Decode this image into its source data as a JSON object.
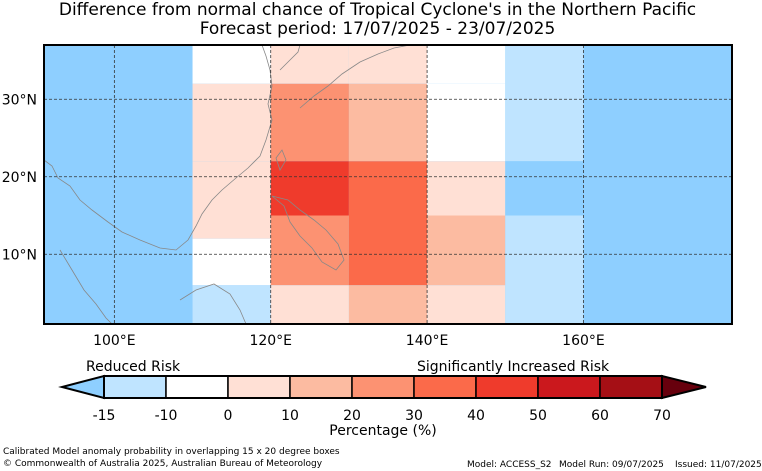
{
  "title": {
    "line1": "Difference from normal chance of Tropical Cyclone's in the Northern Pacific",
    "line2": "Forecast period: 17/07/2025 - 23/07/2025"
  },
  "map": {
    "lon_range": [
      91,
      179
    ],
    "lat_range": [
      1,
      37
    ],
    "lon_ticks": [
      {
        "value": 100,
        "label": "100°E"
      },
      {
        "value": 120,
        "label": "120°E"
      },
      {
        "value": 140,
        "label": "140°E"
      },
      {
        "value": 160,
        "label": "160°E"
      }
    ],
    "lat_ticks": [
      {
        "value": 30,
        "label": "30°N"
      },
      {
        "value": 20,
        "label": "20°N"
      },
      {
        "value": 10,
        "label": "10°N"
      }
    ],
    "background_color": "#8ecfff",
    "grid_cells": [
      {
        "lon": [
          110,
          120
        ],
        "lat": [
          32,
          37
        ],
        "color": "#ffffff"
      },
      {
        "lon": [
          110,
          120
        ],
        "lat": [
          22,
          32
        ],
        "color": "#ffe0d5"
      },
      {
        "lon": [
          110,
          120
        ],
        "lat": [
          12,
          22
        ],
        "color": "#ffe0d5"
      },
      {
        "lon": [
          110,
          120
        ],
        "lat": [
          6,
          12
        ],
        "color": "#ffffff"
      },
      {
        "lon": [
          110,
          120
        ],
        "lat": [
          1,
          6
        ],
        "color": "#bfe4ff"
      },
      {
        "lon": [
          120,
          130
        ],
        "lat": [
          32,
          37
        ],
        "color": "#ffe0d5"
      },
      {
        "lon": [
          120,
          130
        ],
        "lat": [
          27,
          32
        ],
        "color": "#fc9272"
      },
      {
        "lon": [
          120,
          130
        ],
        "lat": [
          22,
          27
        ],
        "color": "#fc9272"
      },
      {
        "lon": [
          120,
          130
        ],
        "lat": [
          15,
          22
        ],
        "color": "#ef3b2c"
      },
      {
        "lon": [
          120,
          130
        ],
        "lat": [
          6,
          15
        ],
        "color": "#fc9272"
      },
      {
        "lon": [
          120,
          130
        ],
        "lat": [
          1,
          6
        ],
        "color": "#ffe0d5"
      },
      {
        "lon": [
          130,
          140
        ],
        "lat": [
          32,
          37
        ],
        "color": "#ffe0d5"
      },
      {
        "lon": [
          130,
          140
        ],
        "lat": [
          22,
          32
        ],
        "color": "#fcbba1"
      },
      {
        "lon": [
          130,
          140
        ],
        "lat": [
          6,
          22
        ],
        "color": "#fb6a4a"
      },
      {
        "lon": [
          130,
          140
        ],
        "lat": [
          1,
          6
        ],
        "color": "#fcbba1"
      },
      {
        "lon": [
          140,
          150
        ],
        "lat": [
          32,
          37
        ],
        "color": "#ffffff"
      },
      {
        "lon": [
          140,
          150
        ],
        "lat": [
          22,
          32
        ],
        "color": "#ffffff"
      },
      {
        "lon": [
          140,
          150
        ],
        "lat": [
          15,
          22
        ],
        "color": "#ffe0d5"
      },
      {
        "lon": [
          140,
          150
        ],
        "lat": [
          6,
          15
        ],
        "color": "#fcbba1"
      },
      {
        "lon": [
          140,
          150
        ],
        "lat": [
          1,
          6
        ],
        "color": "#ffe0d5"
      },
      {
        "lon": [
          150,
          160
        ],
        "lat": [
          22,
          37
        ],
        "color": "#bfe4ff"
      },
      {
        "lon": [
          150,
          160
        ],
        "lat": [
          15,
          22
        ],
        "color": "#8ecfff"
      },
      {
        "lon": [
          150,
          160
        ],
        "lat": [
          1,
          15
        ],
        "color": "#bfe4ff"
      }
    ]
  },
  "colorbar": {
    "left_label": "Reduced Risk",
    "right_label": "Significantly Increased Risk",
    "axis_title": "Percentage (%)",
    "ticks": [
      "-15",
      "-10",
      "0",
      "10",
      "20",
      "30",
      "40",
      "50",
      "60",
      "70"
    ],
    "under_color": "#8ecfff",
    "over_color": "#67000d",
    "bins": [
      "#bfe4ff",
      "#ffffff",
      "#ffe0d5",
      "#fcbba1",
      "#fc9272",
      "#fb6a4a",
      "#ef3b2c",
      "#cb181d",
      "#a50f15"
    ]
  },
  "footer": {
    "line1": "Calibrated Model anomaly probability in overlapping 15 x 20 degree boxes",
    "line2": "© Commonwealth of Australia 2025, Australian Bureau of Meteorology",
    "model": "Model: ACCESS_S2",
    "model_run": "Model Run: 09/07/2025",
    "issued": "Issued: 11/07/2025"
  }
}
